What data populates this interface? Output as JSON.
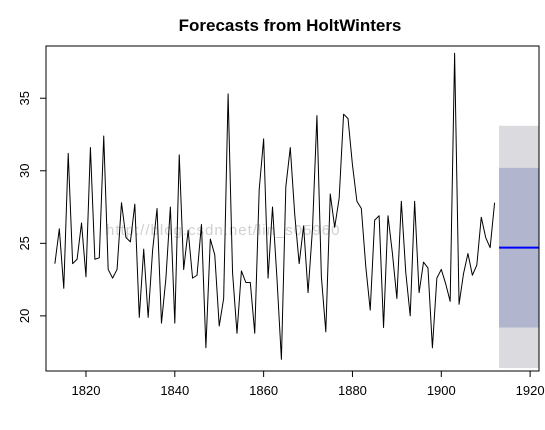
{
  "chart_data": {
    "type": "line",
    "title": "Forecasts from HoltWinters",
    "xlabel": "",
    "ylabel": "",
    "xlim": [
      1811,
      1922
    ],
    "ylim": [
      16.2,
      38.6
    ],
    "x_ticks": [
      1820,
      1840,
      1860,
      1880,
      1900,
      1920
    ],
    "y_ticks": [
      20,
      25,
      30,
      35
    ],
    "grid": false,
    "legend": "none",
    "series": [
      {
        "x_start": 1813,
        "x_step": 1,
        "color": "#000000",
        "values": [
          23.6,
          26.0,
          21.9,
          31.2,
          23.6,
          23.9,
          26.4,
          22.7,
          31.6,
          23.9,
          24.0,
          32.4,
          23.2,
          22.6,
          23.2,
          27.8,
          25.4,
          25.1,
          27.7,
          19.9,
          24.6,
          19.9,
          24.5,
          27.4,
          19.5,
          22.6,
          27.5,
          19.5,
          31.1,
          23.2,
          25.9,
          22.6,
          22.8,
          26.3,
          17.8,
          25.3,
          24.2,
          19.3,
          21.2,
          35.3,
          23.0,
          18.8,
          23.1,
          22.3,
          22.3,
          18.8,
          28.7,
          32.2,
          22.6,
          27.5,
          22.6,
          17.0,
          28.9,
          31.6,
          27.0,
          23.6,
          26.2,
          21.6,
          26.0,
          33.8,
          22.7,
          18.9,
          28.4,
          26.1,
          28.1,
          33.9,
          33.6,
          30.4,
          27.9,
          27.4,
          23.4,
          20.4,
          26.6,
          26.9,
          19.2,
          26.9,
          24.3,
          21.2,
          27.9,
          23.0,
          20.0,
          27.9,
          21.6,
          23.7,
          23.3,
          17.8,
          22.6,
          23.2,
          22.2,
          21.0,
          38.1,
          20.8,
          22.9,
          24.3,
          22.8,
          23.5,
          26.8,
          25.4,
          24.7,
          27.8
        ]
      }
    ],
    "forecast": {
      "x_start": 1913,
      "x_end": 1922,
      "mean": 24.7,
      "interval_80": [
        19.2,
        30.2
      ],
      "interval_95": [
        16.4,
        33.1
      ],
      "mean_color": "#0000ff",
      "band_80_color": "#b1b5ce",
      "band_95_color": "#dbdbdf"
    }
  },
  "watermark": "http://blog.csdn.net/lin_s05960"
}
